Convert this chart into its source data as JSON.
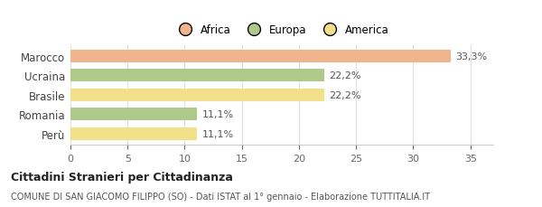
{
  "categories": [
    "Marocco",
    "Ucraina",
    "Brasile",
    "Romania",
    "Perù"
  ],
  "values": [
    33.3,
    22.2,
    22.2,
    11.1,
    11.1
  ],
  "bar_colors": [
    "#F2B48A",
    "#AECA8A",
    "#F2DF8A",
    "#AECA8A",
    "#F2DF8A"
  ],
  "labels": [
    "33,3%",
    "22,2%",
    "22,2%",
    "11,1%",
    "11,1%"
  ],
  "legend": [
    {
      "label": "Africa",
      "color": "#F2B48A"
    },
    {
      "label": "Europa",
      "color": "#AECA8A"
    },
    {
      "label": "America",
      "color": "#F2DF8A"
    }
  ],
  "xlim": [
    0,
    37
  ],
  "xticks": [
    0,
    5,
    10,
    15,
    20,
    25,
    30,
    35
  ],
  "title_bold": "Cittadini Stranieri per Cittadinanza",
  "subtitle": "COMUNE DI SAN GIACOMO FILIPPO (SO) - Dati ISTAT al 1° gennaio - Elaborazione TUTTITALIA.IT",
  "background_color": "#ffffff"
}
